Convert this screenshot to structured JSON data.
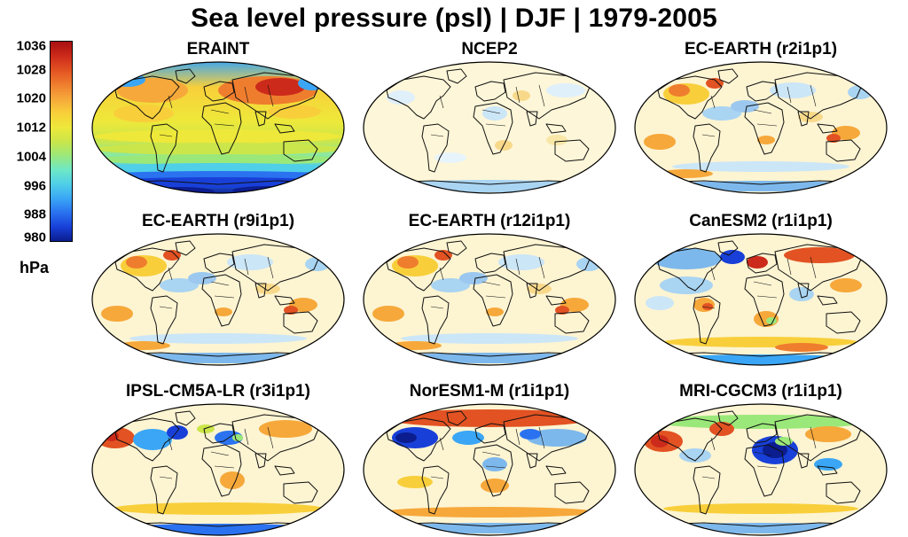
{
  "title": "Sea level pressure (psl) | DJF | 1979-2005",
  "colorbar": {
    "unit": "hPa",
    "ticks": [
      "1036",
      "1028",
      "1020",
      "1012",
      "1004",
      "996",
      "988",
      "980"
    ],
    "colors": [
      "#0b1d8f",
      "#1840d8",
      "#2a72f0",
      "#3aa6f5",
      "#4fcfe8",
      "#6ee8c6",
      "#9be87a",
      "#cbe64a",
      "#eee83a",
      "#f8cf3a",
      "#f6a83a",
      "#ef7d2e",
      "#e25222",
      "#cc2a1a",
      "#a80f12"
    ]
  },
  "chart_data": {
    "type": "heatmap",
    "title": "Sea level pressure (psl) | DJF | 1979-2005",
    "panels": [
      {
        "name": "ERAINT",
        "kind": "absolute"
      },
      {
        "name": "NCEP2",
        "kind": "bias"
      },
      {
        "name": "EC-EARTH (r2i1p1)",
        "kind": "bias"
      },
      {
        "name": "EC-EARTH (r9i1p1)",
        "kind": "bias"
      },
      {
        "name": "EC-EARTH (r12i1p1)",
        "kind": "bias"
      },
      {
        "name": "CanESM2 (r1i1p1)",
        "kind": "bias"
      },
      {
        "name": "IPSL-CM5A-LR (r3i1p1)",
        "kind": "bias"
      },
      {
        "name": "NorESM1-M (r1i1p1)",
        "kind": "bias"
      },
      {
        "name": "MRI-CGCM3 (r1i1p1)",
        "kind": "bias"
      }
    ],
    "colorbar_range": [
      980,
      1036
    ],
    "unit": "hPa"
  },
  "panels": [
    {
      "label": "ERAINT"
    },
    {
      "label": "NCEP2"
    },
    {
      "label": "EC-EARTH (r2i1p1)"
    },
    {
      "label": "EC-EARTH (r9i1p1)"
    },
    {
      "label": "EC-EARTH (r12i1p1)"
    },
    {
      "label": "CanESM2 (r1i1p1)"
    },
    {
      "label": "IPSL-CM5A-LR (r3i1p1)"
    },
    {
      "label": "NorESM1-M (r1i1p1)"
    },
    {
      "label": "MRI-CGCM3 (r1i1p1)"
    }
  ]
}
